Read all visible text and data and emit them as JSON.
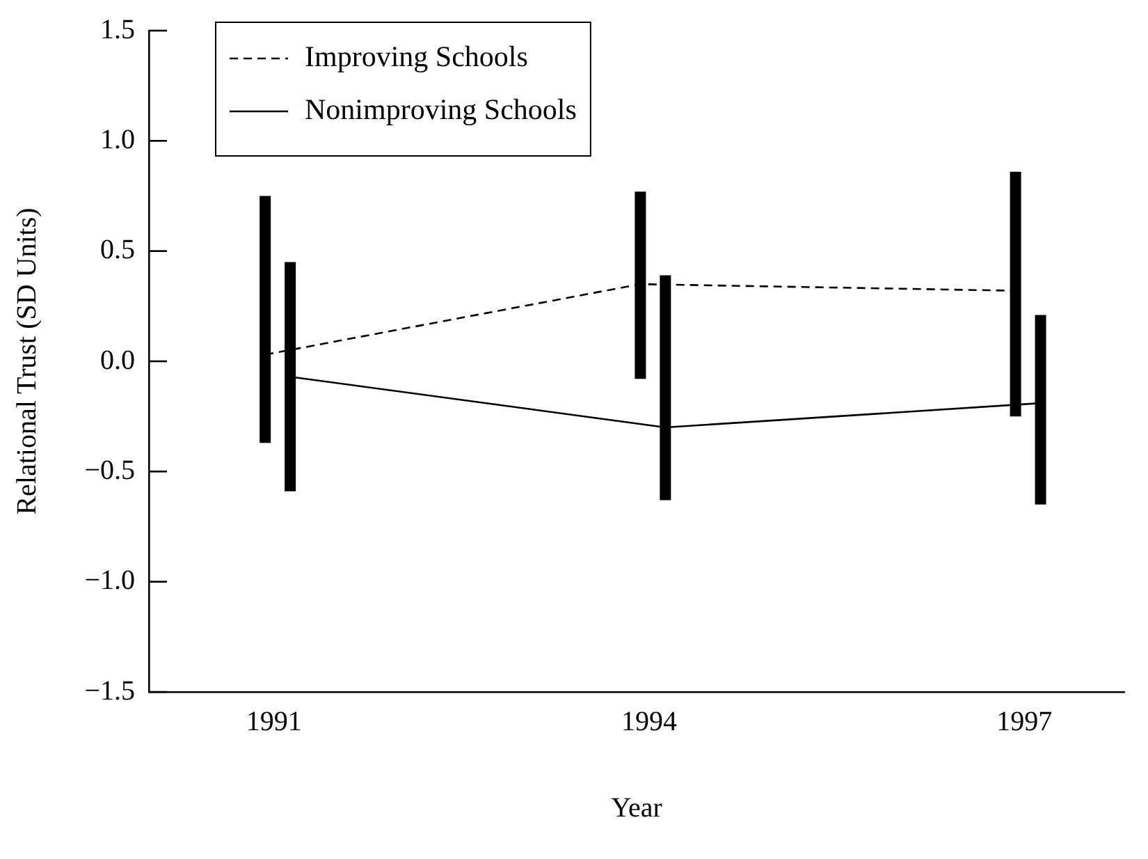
{
  "chart_data": {
    "type": "line",
    "xlabel": "Year",
    "ylabel": "Relational Trust (SD Units)",
    "xlim": [
      1990,
      1997.8
    ],
    "xticks": [
      1991,
      1994,
      1997
    ],
    "ylim": [
      -1.5,
      1.5
    ],
    "yticks": [
      {
        "value": -1.5,
        "label": "−1.5"
      },
      {
        "value": -1,
        "label": "−1.0"
      },
      {
        "value": -0.5,
        "label": "−0.5"
      },
      {
        "value": 0,
        "label": "0.0"
      },
      {
        "value": 0.5,
        "label": "0.5"
      },
      {
        "value": 1,
        "label": "1.0"
      },
      {
        "value": 1.5,
        "label": "1.5"
      }
    ],
    "grid": false,
    "legend": "top left",
    "marker": "none",
    "series": [
      {
        "name": "Improving Schools",
        "color": "#000000",
        "line_style": "dashed",
        "x": [
          1990.93,
          1993.93,
          1996.93
        ],
        "values": [
          0.03,
          0.35,
          0.32
        ],
        "errors": [
          [
            -0.37,
            0.75
          ],
          [
            -0.08,
            0.77
          ],
          [
            -0.25,
            0.86
          ]
        ]
      },
      {
        "name": "Nonimproving Schools",
        "color": "#000000",
        "line_style": "solid",
        "x": [
          1991.13,
          1994.13,
          1997.13
        ],
        "values": [
          -0.07,
          -0.3,
          -0.19
        ],
        "errors": [
          [
            -0.59,
            0.45
          ],
          [
            -0.63,
            0.39
          ],
          [
            -0.65,
            0.21
          ]
        ]
      }
    ]
  }
}
